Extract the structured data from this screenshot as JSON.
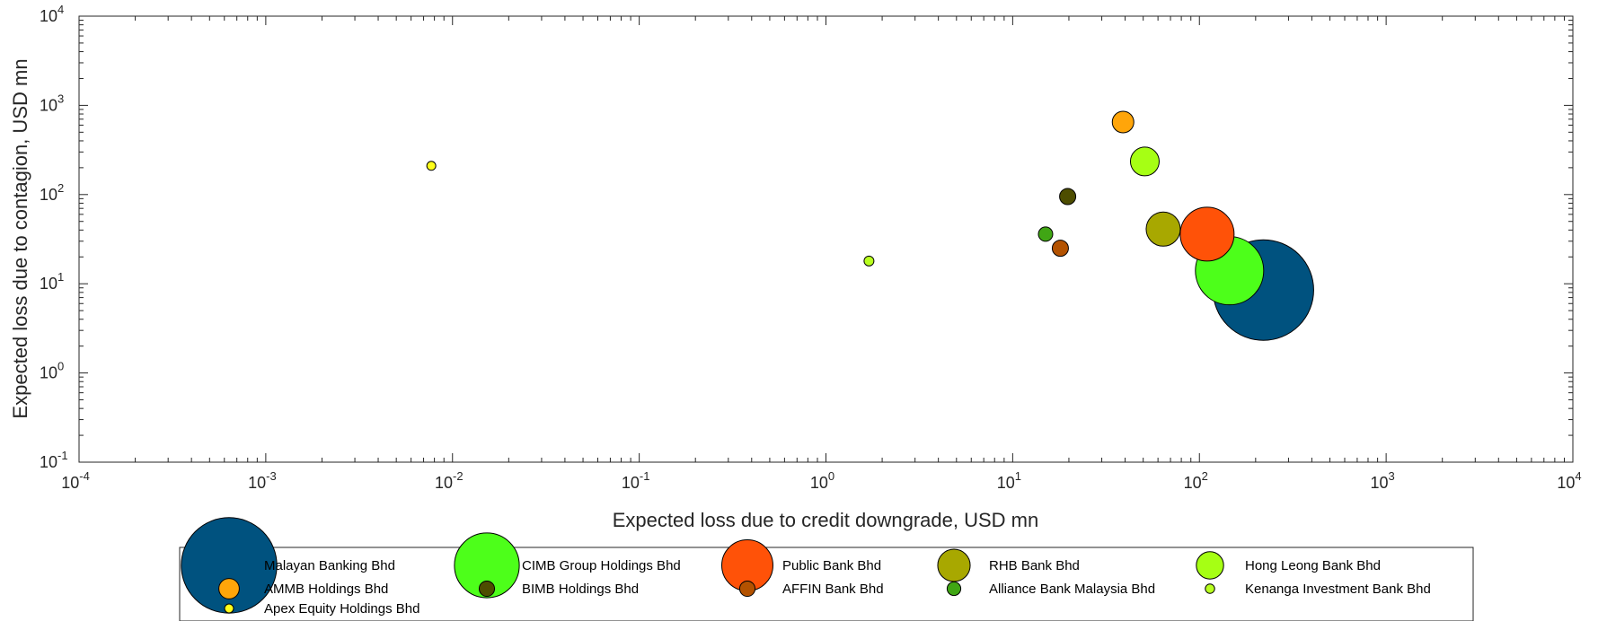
{
  "chart_data": {
    "type": "scatter",
    "xlabel": "Expected loss due to credit downgrade, USD mn",
    "ylabel": "Expected loss due to contagion, USD mn",
    "xscale": "log",
    "yscale": "log",
    "xlim": [
      0.0001,
      10000
    ],
    "ylim": [
      0.1,
      10000
    ],
    "xticks": [
      {
        "base": "10",
        "exp": "-4"
      },
      {
        "base": "10",
        "exp": "-3"
      },
      {
        "base": "10",
        "exp": "-2"
      },
      {
        "base": "10",
        "exp": "-1"
      },
      {
        "base": "10",
        "exp": "0"
      },
      {
        "base": "10",
        "exp": "1"
      },
      {
        "base": "10",
        "exp": "2"
      },
      {
        "base": "10",
        "exp": "3"
      },
      {
        "base": "10",
        "exp": "4"
      }
    ],
    "yticks": [
      {
        "base": "10",
        "exp": "-1"
      },
      {
        "base": "10",
        "exp": "0"
      },
      {
        "base": "10",
        "exp": "1"
      },
      {
        "base": "10",
        "exp": "2"
      },
      {
        "base": "10",
        "exp": "3"
      },
      {
        "base": "10",
        "exp": "4"
      }
    ],
    "grid": false,
    "legend_position": "bottom",
    "points": [
      {
        "name": "Malayan Banking Bhd",
        "x": 220,
        "y": 8.5,
        "r": 56,
        "color": "#00527f"
      },
      {
        "name": "CIMB Group Holdings Bhd",
        "x": 145,
        "y": 14,
        "r": 38,
        "color": "#4dff1a"
      },
      {
        "name": "Public Bank Bhd",
        "x": 110,
        "y": 36,
        "r": 30,
        "color": "#ff5208"
      },
      {
        "name": "RHB Bank Bhd",
        "x": 64,
        "y": 41,
        "r": 19,
        "color": "#a8a800"
      },
      {
        "name": "Hong Leong Bank Bhd",
        "x": 51,
        "y": 235,
        "r": 16,
        "color": "#a6ff14"
      },
      {
        "name": "AMMB Holdings Bhd",
        "x": 39,
        "y": 650,
        "r": 12,
        "color": "#ffa50a"
      },
      {
        "name": "BIMB Holdings Bhd",
        "x": 19.7,
        "y": 95,
        "r": 9,
        "color": "#4d4d00"
      },
      {
        "name": "AFFIN Bank Bhd",
        "x": 18,
        "y": 25,
        "r": 9,
        "color": "#b35200"
      },
      {
        "name": "Alliance Bank Malaysia Bhd",
        "x": 15,
        "y": 36,
        "r": 8,
        "color": "#40a614"
      },
      {
        "name": "Kenanga Investment Bank Bhd",
        "x": 1.7,
        "y": 18,
        "r": 5.5,
        "color": "#b8ff1f"
      },
      {
        "name": "Apex Equity Holdings Bhd",
        "x": 0.0077,
        "y": 210,
        "r": 5,
        "color": "#ffff1a"
      }
    ],
    "legend_labels": [
      "Malayan Banking Bhd",
      "CIMB Group Holdings Bhd",
      "Public Bank Bhd",
      "RHB Bank Bhd",
      "Hong Leong Bank Bhd",
      "AMMB Holdings Bhd",
      "BIMB Holdings Bhd",
      "AFFIN Bank Bhd",
      "Alliance Bank Malaysia Bhd",
      "Kenanga Investment Bank Bhd",
      "Apex Equity Holdings Bhd"
    ]
  }
}
